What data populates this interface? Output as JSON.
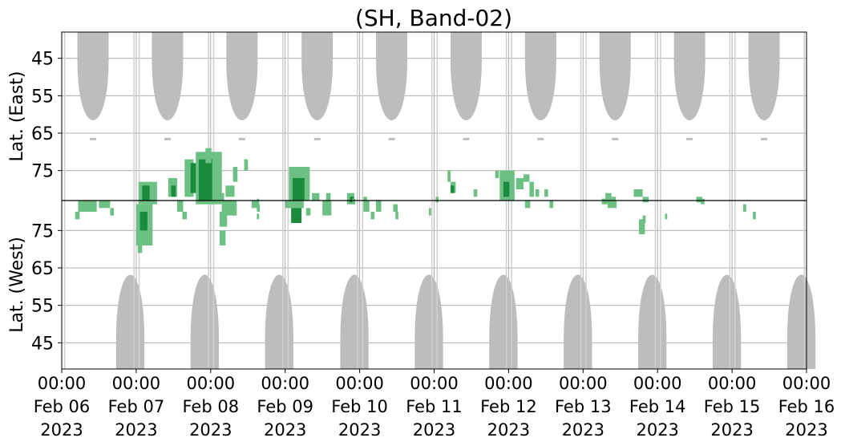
{
  "chart_data": {
    "type": "heatmap",
    "title": "(SH, Band-02)",
    "upper_panel": {
      "ylabel": "Lat. (East)",
      "yticks": [
        45,
        55,
        65,
        75
      ],
      "ylim": [
        38,
        83
      ]
    },
    "lower_panel": {
      "ylabel": "Lat. (West)",
      "yticks": [
        75,
        65,
        55,
        45
      ],
      "ylim": [
        83,
        38
      ]
    },
    "x_ticks": [
      {
        "day": 0,
        "time": "00:00",
        "date": "Feb 06",
        "year": "2023"
      },
      {
        "day": 1,
        "time": "00:00",
        "date": "Feb 07",
        "year": "2023"
      },
      {
        "day": 2,
        "time": "00:00",
        "date": "Feb 08",
        "year": "2023"
      },
      {
        "day": 3,
        "time": "00:00",
        "date": "Feb 09",
        "year": "2023"
      },
      {
        "day": 4,
        "time": "00:00",
        "date": "Feb 10",
        "year": "2023"
      },
      {
        "day": 5,
        "time": "00:00",
        "date": "Feb 11",
        "year": "2023"
      },
      {
        "day": 6,
        "time": "00:00",
        "date": "Feb 12",
        "year": "2023"
      },
      {
        "day": 7,
        "time": "00:00",
        "date": "Feb 13",
        "year": "2023"
      },
      {
        "day": 8,
        "time": "00:00",
        "date": "Feb 14",
        "year": "2023"
      },
      {
        "day": 9,
        "time": "00:00",
        "date": "Feb 15",
        "year": "2023"
      },
      {
        "day": 10,
        "time": "00:00",
        "date": "Feb 16",
        "year": "2023"
      }
    ],
    "grid": true,
    "colors": {
      "gray": "#bdbdbd",
      "green_light": "#6cc083",
      "green_dark": "#1a8a3c"
    },
    "gray_east": [
      {
        "c": 0.42,
        "w": 0.42,
        "min": 67
      },
      {
        "c": 1.42,
        "w": 0.42,
        "min": 67
      },
      {
        "c": 2.42,
        "w": 0.42,
        "min": 67
      },
      {
        "c": 3.43,
        "w": 0.42,
        "min": 67
      },
      {
        "c": 4.43,
        "w": 0.42,
        "min": 67
      },
      {
        "c": 5.43,
        "w": 0.42,
        "min": 67
      },
      {
        "c": 6.43,
        "w": 0.42,
        "min": 67
      },
      {
        "c": 7.43,
        "w": 0.42,
        "min": 67
      },
      {
        "c": 8.43,
        "w": 0.42,
        "min": 67
      },
      {
        "c": 9.43,
        "w": 0.42,
        "min": 67
      }
    ],
    "gray_west": [
      {
        "c": 0.92,
        "w": 0.38,
        "min": 69
      },
      {
        "c": 1.92,
        "w": 0.38,
        "min": 69
      },
      {
        "c": 2.92,
        "w": 0.38,
        "min": 69
      },
      {
        "c": 3.93,
        "w": 0.38,
        "min": 69
      },
      {
        "c": 4.93,
        "w": 0.38,
        "min": 69
      },
      {
        "c": 5.93,
        "w": 0.38,
        "min": 69
      },
      {
        "c": 6.93,
        "w": 0.38,
        "min": 69
      },
      {
        "c": 7.93,
        "w": 0.38,
        "min": 69
      },
      {
        "c": 8.93,
        "w": 0.38,
        "min": 69
      },
      {
        "c": 9.93,
        "w": 0.38,
        "min": 69
      }
    ],
    "green_east": [
      {
        "x": 1.03,
        "y": 78,
        "w": 0.25,
        "h": 6,
        "dark": false
      },
      {
        "x": 1.08,
        "y": 79,
        "w": 0.1,
        "h": 4,
        "dark": true
      },
      {
        "x": 1.43,
        "y": 77,
        "w": 0.12,
        "h": 5,
        "dark": false
      },
      {
        "x": 1.47,
        "y": 79,
        "w": 0.06,
        "h": 3,
        "dark": true
      },
      {
        "x": 1.65,
        "y": 72,
        "w": 0.12,
        "h": 10,
        "dark": false
      },
      {
        "x": 1.73,
        "y": 73,
        "w": 0.08,
        "h": 8,
        "dark": true
      },
      {
        "x": 1.8,
        "y": 70,
        "w": 0.35,
        "h": 14,
        "dark": false
      },
      {
        "x": 1.84,
        "y": 72,
        "w": 0.18,
        "h": 11,
        "dark": true
      },
      {
        "x": 1.93,
        "y": 69,
        "w": 0.08,
        "h": 4,
        "dark": false
      },
      {
        "x": 2.1,
        "y": 81,
        "w": 0.08,
        "h": 2,
        "dark": false
      },
      {
        "x": 2.2,
        "y": 79,
        "w": 0.12,
        "h": 3,
        "dark": false
      },
      {
        "x": 2.3,
        "y": 74,
        "w": 0.06,
        "h": 4,
        "dark": false
      },
      {
        "x": 2.45,
        "y": 72,
        "w": 0.05,
        "h": 3,
        "dark": false
      },
      {
        "x": 3.05,
        "y": 74,
        "w": 0.28,
        "h": 9,
        "dark": false
      },
      {
        "x": 3.1,
        "y": 77,
        "w": 0.16,
        "h": 6,
        "dark": true
      },
      {
        "x": 3.36,
        "y": 81,
        "w": 0.1,
        "h": 2,
        "dark": false
      },
      {
        "x": 3.55,
        "y": 81,
        "w": 0.06,
        "h": 2,
        "dark": false
      },
      {
        "x": 3.83,
        "y": 81,
        "w": 0.1,
        "h": 3,
        "dark": false
      },
      {
        "x": 3.87,
        "y": 82,
        "w": 0.05,
        "h": 1.5,
        "dark": true
      },
      {
        "x": 4.05,
        "y": 82,
        "w": 0.05,
        "h": 1.5,
        "dark": false
      },
      {
        "x": 5.02,
        "y": 82,
        "w": 0.04,
        "h": 1.5,
        "dark": false
      },
      {
        "x": 5.18,
        "y": 75,
        "w": 0.04,
        "h": 3,
        "dark": false
      },
      {
        "x": 5.22,
        "y": 78,
        "w": 0.07,
        "h": 3,
        "dark": false
      },
      {
        "x": 5.22,
        "y": 79,
        "w": 0.05,
        "h": 2,
        "dark": true
      },
      {
        "x": 5.53,
        "y": 80,
        "w": 0.05,
        "h": 2,
        "dark": false
      },
      {
        "x": 5.82,
        "y": 75,
        "w": 0.05,
        "h": 2,
        "dark": false
      },
      {
        "x": 5.88,
        "y": 75,
        "w": 0.2,
        "h": 8,
        "dark": false
      },
      {
        "x": 5.93,
        "y": 78,
        "w": 0.08,
        "h": 4,
        "dark": true
      },
      {
        "x": 6.1,
        "y": 77,
        "w": 0.1,
        "h": 3,
        "dark": false
      },
      {
        "x": 6.2,
        "y": 76,
        "w": 0.08,
        "h": 2,
        "dark": false
      },
      {
        "x": 6.28,
        "y": 78,
        "w": 0.06,
        "h": 4,
        "dark": false
      },
      {
        "x": 6.36,
        "y": 80,
        "w": 0.05,
        "h": 2,
        "dark": false
      },
      {
        "x": 6.48,
        "y": 80,
        "w": 0.05,
        "h": 2,
        "dark": false
      },
      {
        "x": 7.3,
        "y": 81,
        "w": 0.08,
        "h": 2,
        "dark": false
      },
      {
        "x": 7.38,
        "y": 82,
        "w": 0.06,
        "h": 1.5,
        "dark": false
      },
      {
        "x": 7.68,
        "y": 80,
        "w": 0.12,
        "h": 2,
        "dark": false
      },
      {
        "x": 7.8,
        "y": 82,
        "w": 0.08,
        "h": 1.5,
        "dark": false
      },
      {
        "x": 8.52,
        "y": 82,
        "w": 0.08,
        "h": 1.5,
        "dark": false
      }
    ],
    "green_west": [
      {
        "x": 0.22,
        "y": 80,
        "w": 0.25,
        "h": 3,
        "dark": false
      },
      {
        "x": 0.18,
        "y": 78,
        "w": 0.06,
        "h": 2,
        "dark": false
      },
      {
        "x": 0.5,
        "y": 81,
        "w": 0.15,
        "h": 2,
        "dark": false
      },
      {
        "x": 0.65,
        "y": 79,
        "w": 0.05,
        "h": 2,
        "dark": false
      },
      {
        "x": 1.0,
        "y": 71,
        "w": 0.22,
        "h": 11,
        "dark": false
      },
      {
        "x": 1.05,
        "y": 75,
        "w": 0.1,
        "h": 5,
        "dark": true
      },
      {
        "x": 1.02,
        "y": 69,
        "w": 0.06,
        "h": 3,
        "dark": false
      },
      {
        "x": 1.55,
        "y": 80,
        "w": 0.08,
        "h": 3,
        "dark": false
      },
      {
        "x": 1.62,
        "y": 78,
        "w": 0.06,
        "h": 2,
        "dark": false
      },
      {
        "x": 2.12,
        "y": 76,
        "w": 0.1,
        "h": 4,
        "dark": false
      },
      {
        "x": 2.12,
        "y": 71,
        "w": 0.08,
        "h": 4,
        "dark": false
      },
      {
        "x": 2.15,
        "y": 79,
        "w": 0.2,
        "h": 4,
        "dark": false
      },
      {
        "x": 2.55,
        "y": 81,
        "w": 0.1,
        "h": 2,
        "dark": false
      },
      {
        "x": 2.62,
        "y": 80,
        "w": 0.04,
        "h": 2,
        "dark": false
      },
      {
        "x": 2.62,
        "y": 82,
        "w": 0.03,
        "h": 1.5,
        "dark": false
      },
      {
        "x": 2.62,
        "y": 78,
        "w": 0.03,
        "h": 1.5,
        "dark": false
      },
      {
        "x": 3.0,
        "y": 81,
        "w": 0.25,
        "h": 2,
        "dark": false
      },
      {
        "x": 3.08,
        "y": 77,
        "w": 0.14,
        "h": 4,
        "dark": true
      },
      {
        "x": 3.28,
        "y": 79,
        "w": 0.06,
        "h": 2,
        "dark": false
      },
      {
        "x": 3.5,
        "y": 79,
        "w": 0.12,
        "h": 4,
        "dark": false
      },
      {
        "x": 3.9,
        "y": 82,
        "w": 0.04,
        "h": 1.5,
        "dark": false
      },
      {
        "x": 4.05,
        "y": 80,
        "w": 0.08,
        "h": 3,
        "dark": false
      },
      {
        "x": 4.15,
        "y": 78,
        "w": 0.05,
        "h": 2,
        "dark": false
      },
      {
        "x": 4.22,
        "y": 80,
        "w": 0.07,
        "h": 3,
        "dark": false
      },
      {
        "x": 4.45,
        "y": 80,
        "w": 0.06,
        "h": 2,
        "dark": false
      },
      {
        "x": 4.48,
        "y": 78,
        "w": 0.04,
        "h": 2,
        "dark": false
      },
      {
        "x": 4.93,
        "y": 79,
        "w": 0.03,
        "h": 2,
        "dark": false
      },
      {
        "x": 6.22,
        "y": 81,
        "w": 0.07,
        "h": 2,
        "dark": false
      },
      {
        "x": 6.55,
        "y": 81,
        "w": 0.05,
        "h": 2,
        "dark": false
      },
      {
        "x": 7.25,
        "y": 82,
        "w": 0.08,
        "h": 1.5,
        "dark": false
      },
      {
        "x": 7.33,
        "y": 81,
        "w": 0.12,
        "h": 2,
        "dark": false
      },
      {
        "x": 7.75,
        "y": 74,
        "w": 0.08,
        "h": 4,
        "dark": false
      },
      {
        "x": 7.8,
        "y": 77,
        "w": 0.04,
        "h": 2,
        "dark": false
      },
      {
        "x": 8.1,
        "y": 78,
        "w": 0.03,
        "h": 1.5,
        "dark": false
      },
      {
        "x": 8.58,
        "y": 82,
        "w": 0.05,
        "h": 1.5,
        "dark": false
      },
      {
        "x": 9.15,
        "y": 80,
        "w": 0.04,
        "h": 2,
        "dark": false
      },
      {
        "x": 9.28,
        "y": 78,
        "w": 0.04,
        "h": 2,
        "dark": false
      }
    ]
  }
}
